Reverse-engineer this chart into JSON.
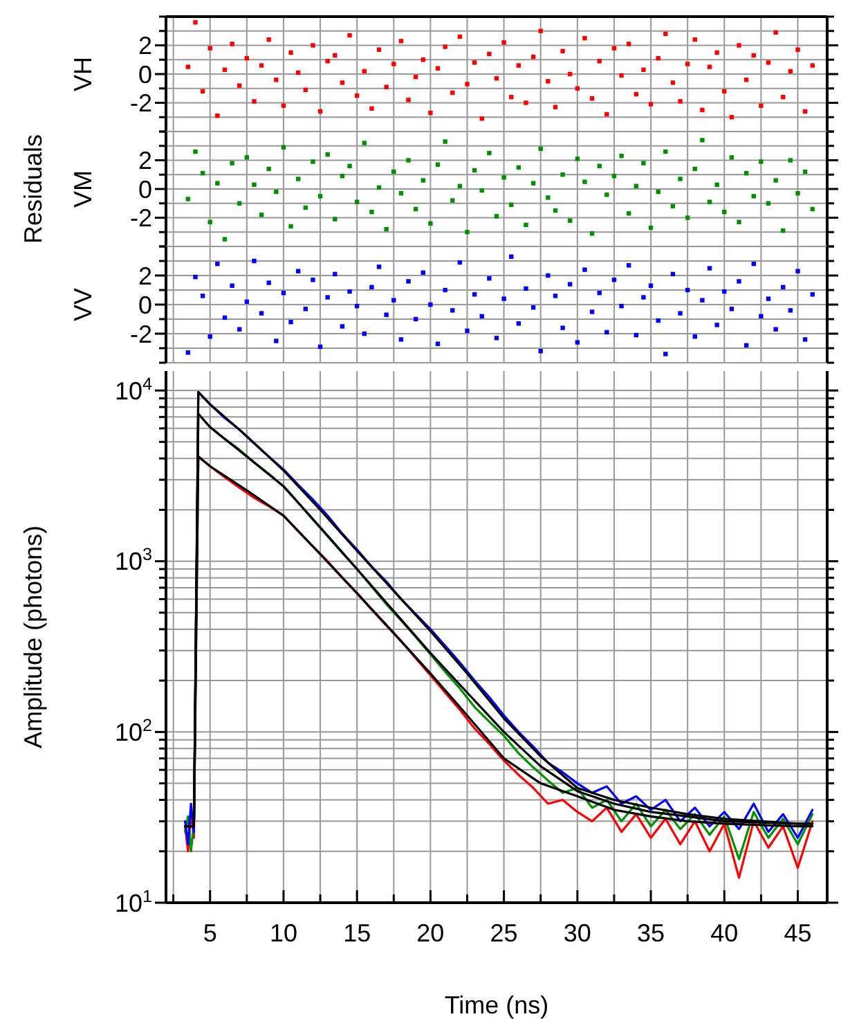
{
  "chart_data": [
    {
      "type": "scatter",
      "ylabel": "VH",
      "marker": "square",
      "grid": true,
      "tick_labels": "y",
      "color": "#ff0000",
      "xlim": [
        2,
        47
      ],
      "ylim": [
        -4,
        4
      ],
      "xticks": [
        {
          "value": 2.5,
          "label": null
        },
        5,
        {
          "value": 7.5,
          "label": null
        },
        10,
        {
          "value": 12.5,
          "label": null
        },
        15,
        {
          "value": 17.5,
          "label": null
        },
        20,
        {
          "value": 22.5,
          "label": null
        },
        25,
        {
          "value": 27.5,
          "label": null
        },
        30,
        {
          "value": 32.5,
          "label": null
        },
        35,
        {
          "value": 37.5,
          "label": null
        },
        40,
        {
          "value": 42.5,
          "label": null
        },
        45
      ],
      "yticks": [
        {
          "value": -4,
          "label": null
        },
        {
          "value": -3,
          "label": null
        },
        -2,
        {
          "value": -1,
          "label": null
        },
        0,
        {
          "value": 1,
          "label": null
        },
        2,
        {
          "value": 3,
          "label": null
        },
        {
          "value": 4,
          "label": null
        }
      ],
      "x": [
        3.5,
        4,
        4.5,
        5,
        5.5,
        6,
        6.5,
        7,
        7.5,
        8,
        8.5,
        9,
        9.5,
        10,
        10.5,
        11,
        11.5,
        12,
        12.5,
        13,
        13.5,
        14,
        14.5,
        15,
        15.5,
        16,
        16.5,
        17,
        17.5,
        18,
        18.5,
        19,
        19.5,
        20,
        20.5,
        21,
        21.5,
        22,
        22.5,
        23,
        23.5,
        24,
        24.5,
        25,
        25.5,
        26,
        26.5,
        27,
        27.5,
        28,
        28.5,
        29,
        29.5,
        30,
        30.5,
        31,
        31.5,
        32,
        32.5,
        33,
        33.5,
        34,
        34.5,
        35,
        35.5,
        36,
        36.5,
        37,
        37.5,
        38,
        38.5,
        39,
        39.5,
        40,
        40.5,
        41,
        41.5,
        42,
        42.5,
        43,
        43.5,
        44,
        44.5,
        45,
        45.5,
        46
      ],
      "values": [
        0.5,
        3.6,
        -1.2,
        1.8,
        -2.9,
        0.3,
        2.1,
        -0.8,
        1.1,
        -1.9,
        0.6,
        2.4,
        -0.4,
        -2.2,
        1.5,
        0.1,
        -1.1,
        2.0,
        -2.6,
        0.9,
        1.3,
        -0.6,
        2.7,
        -1.5,
        0.2,
        -2.4,
        1.7,
        -0.9,
        0.7,
        2.3,
        -1.8,
        -0.2,
        1.0,
        -2.7,
        0.4,
        1.9,
        -1.3,
        2.6,
        -0.7,
        0.8,
        -3.1,
        1.4,
        -0.3,
        2.2,
        -1.6,
        0.6,
        -2.0,
        1.2,
        3.0,
        -0.5,
        -2.3,
        1.6,
        0.0,
        -1.0,
        2.5,
        -1.7,
        0.9,
        -2.8,
        1.8,
        -0.1,
        2.1,
        -1.4,
        0.3,
        -2.1,
        1.1,
        2.8,
        -0.6,
        -1.9,
        0.7,
        2.4,
        -2.5,
        0.5,
        1.5,
        -1.2,
        -3.0,
        2.0,
        -0.4,
        1.3,
        -2.2,
        0.8,
        2.9,
        -1.6,
        0.2,
        1.7,
        -2.6,
        0.6
      ]
    },
    {
      "type": "scatter",
      "ylabel": "VM",
      "annotations": [
        "Residuals"
      ],
      "marker": "square",
      "grid": true,
      "tick_labels": "y",
      "color": "#009000",
      "xlim": [
        2,
        47
      ],
      "ylim": [
        -4,
        4
      ],
      "xticks": [
        {
          "value": 2.5,
          "label": null
        },
        5,
        {
          "value": 7.5,
          "label": null
        },
        10,
        {
          "value": 12.5,
          "label": null
        },
        15,
        {
          "value": 17.5,
          "label": null
        },
        20,
        {
          "value": 22.5,
          "label": null
        },
        25,
        {
          "value": 27.5,
          "label": null
        },
        30,
        {
          "value": 32.5,
          "label": null
        },
        35,
        {
          "value": 37.5,
          "label": null
        },
        40,
        {
          "value": 42.5,
          "label": null
        },
        45
      ],
      "yticks": [
        {
          "value": -4,
          "label": null
        },
        {
          "value": -3,
          "label": null
        },
        -2,
        {
          "value": -1,
          "label": null
        },
        0,
        {
          "value": 1,
          "label": null
        },
        2,
        {
          "value": 3,
          "label": null
        },
        {
          "value": 4,
          "label": null
        }
      ],
      "x": [
        3.5,
        4,
        4.5,
        5,
        5.5,
        6,
        6.5,
        7,
        7.5,
        8,
        8.5,
        9,
        9.5,
        10,
        10.5,
        11,
        11.5,
        12,
        12.5,
        13,
        13.5,
        14,
        14.5,
        15,
        15.5,
        16,
        16.5,
        17,
        17.5,
        18,
        18.5,
        19,
        19.5,
        20,
        20.5,
        21,
        21.5,
        22,
        22.5,
        23,
        23.5,
        24,
        24.5,
        25,
        25.5,
        26,
        26.5,
        27,
        27.5,
        28,
        28.5,
        29,
        29.5,
        30,
        30.5,
        31,
        31.5,
        32,
        32.5,
        33,
        33.5,
        34,
        34.5,
        35,
        35.5,
        36,
        36.5,
        37,
        37.5,
        38,
        38.5,
        39,
        39.5,
        40,
        40.5,
        41,
        41.5,
        42,
        42.5,
        43,
        43.5,
        44,
        44.5,
        45,
        45.5,
        46
      ],
      "values": [
        -0.7,
        2.6,
        1.1,
        -2.3,
        0.4,
        -3.5,
        1.8,
        -1.0,
        2.2,
        0.3,
        -1.8,
        1.4,
        -0.2,
        2.9,
        -2.6,
        0.7,
        -1.3,
        1.9,
        -0.5,
        2.4,
        -2.1,
        0.9,
        1.6,
        -0.9,
        3.2,
        -1.6,
        0.1,
        -2.8,
        1.2,
        -0.3,
        2.0,
        -1.4,
        0.6,
        -2.4,
        1.7,
        3.3,
        -0.8,
        0.2,
        -3.0,
        1.3,
        -0.1,
        2.5,
        -1.9,
        0.8,
        -1.1,
        1.5,
        -2.5,
        0.4,
        2.8,
        -0.6,
        -1.5,
        1.0,
        -2.2,
        2.1,
        0.5,
        -3.1,
        1.6,
        -0.4,
        0.9,
        2.3,
        -1.7,
        0.2,
        1.8,
        -2.7,
        -0.2,
        2.6,
        -1.2,
        0.7,
        -2.0,
        1.4,
        3.4,
        -0.9,
        0.3,
        -1.6,
        2.2,
        -2.3,
        1.1,
        -0.5,
        1.9,
        -1.0,
        0.6,
        -2.9,
        2.0,
        -0.3,
        1.2,
        -1.4
      ]
    },
    {
      "type": "scatter",
      "ylabel": "VV",
      "marker": "square",
      "grid": true,
      "tick_labels": "y",
      "color": "#0000ff",
      "xlim": [
        2,
        47
      ],
      "ylim": [
        -4,
        4
      ],
      "xticks": [
        {
          "value": 2.5,
          "label": null
        },
        5,
        {
          "value": 7.5,
          "label": null
        },
        10,
        {
          "value": 12.5,
          "label": null
        },
        15,
        {
          "value": 17.5,
          "label": null
        },
        20,
        {
          "value": 22.5,
          "label": null
        },
        25,
        {
          "value": 27.5,
          "label": null
        },
        30,
        {
          "value": 32.5,
          "label": null
        },
        35,
        {
          "value": 37.5,
          "label": null
        },
        40,
        {
          "value": 42.5,
          "label": null
        },
        45
      ],
      "yticks": [
        {
          "value": -4,
          "label": null
        },
        {
          "value": -3,
          "label": null
        },
        -2,
        {
          "value": -1,
          "label": null
        },
        0,
        {
          "value": 1,
          "label": null
        },
        2,
        {
          "value": 3,
          "label": null
        },
        {
          "value": 4,
          "label": null
        }
      ],
      "x": [
        3.5,
        4,
        4.5,
        5,
        5.5,
        6,
        6.5,
        7,
        7.5,
        8,
        8.5,
        9,
        9.5,
        10,
        10.5,
        11,
        11.5,
        12,
        12.5,
        13,
        13.5,
        14,
        14.5,
        15,
        15.5,
        16,
        16.5,
        17,
        17.5,
        18,
        18.5,
        19,
        19.5,
        20,
        20.5,
        21,
        21.5,
        22,
        22.5,
        23,
        23.5,
        24,
        24.5,
        25,
        25.5,
        26,
        26.5,
        27,
        27.5,
        28,
        28.5,
        29,
        29.5,
        30,
        30.5,
        31,
        31.5,
        32,
        32.5,
        33,
        33.5,
        34,
        34.5,
        35,
        35.5,
        36,
        36.5,
        37,
        37.5,
        38,
        38.5,
        39,
        39.5,
        40,
        40.5,
        41,
        41.5,
        42,
        42.5,
        43,
        43.5,
        44,
        44.5,
        45,
        45.5,
        46
      ],
      "values": [
        -3.3,
        1.9,
        0.6,
        -2.2,
        2.8,
        -0.9,
        1.3,
        -1.7,
        0.2,
        3.0,
        -0.6,
        1.5,
        -2.5,
        0.8,
        -1.2,
        2.3,
        -0.3,
        1.7,
        -2.9,
        0.5,
        2.1,
        -1.5,
        0.9,
        -0.1,
        -2.0,
        1.2,
        2.6,
        -0.7,
        0.3,
        -2.4,
        1.6,
        -1.0,
        2.2,
        0.0,
        -2.7,
        1.0,
        -0.4,
        2.9,
        -1.8,
        0.7,
        -0.8,
        1.8,
        -2.3,
        0.4,
        3.3,
        -1.3,
        1.1,
        -0.2,
        -3.2,
        2.0,
        0.6,
        -1.6,
        1.4,
        -2.6,
        2.4,
        -0.5,
        0.8,
        -1.9,
        1.7,
        -0.1,
        2.7,
        -2.1,
        0.5,
        1.3,
        -1.1,
        -3.4,
        2.1,
        -0.6,
        1.0,
        -2.2,
        0.3,
        2.5,
        -1.4,
        0.9,
        -0.3,
        1.6,
        -2.8,
        2.8,
        -0.8,
        0.4,
        -1.7,
        1.2,
        -0.4,
        2.3,
        -2.4,
        0.7
      ]
    },
    {
      "type": "line",
      "xlabel": "Time (ns)",
      "ylabel": "Amplitude (photons)",
      "log": true,
      "grid": true,
      "marker": "none",
      "xlim": [
        2,
        47
      ],
      "ylim": [
        10,
        13000
      ],
      "xticks": [
        {
          "value": 2.5,
          "label": null
        },
        5,
        {
          "value": 7.5,
          "label": null
        },
        10,
        {
          "value": 12.5,
          "label": null
        },
        15,
        {
          "value": 17.5,
          "label": null
        },
        20,
        {
          "value": 22.5,
          "label": null
        },
        25,
        {
          "value": 27.5,
          "label": null
        },
        30,
        {
          "value": 32.5,
          "label": null
        },
        35,
        {
          "value": 37.5,
          "label": null
        },
        40,
        {
          "value": 42.5,
          "label": null
        },
        45
      ],
      "yticks": [
        {
          "value": 10,
          "label": "10$^{1}$"
        },
        {
          "value": 20,
          "label": null
        },
        {
          "value": 30,
          "label": null
        },
        {
          "value": 40,
          "label": null
        },
        {
          "value": 50,
          "label": null
        },
        {
          "value": 60,
          "label": null
        },
        {
          "value": 70,
          "label": null
        },
        {
          "value": 80,
          "label": null
        },
        {
          "value": 90,
          "label": null
        },
        {
          "value": 100,
          "label": "10$^{2}$"
        },
        {
          "value": 200,
          "label": null
        },
        {
          "value": 300,
          "label": null
        },
        {
          "value": 400,
          "label": null
        },
        {
          "value": 500,
          "label": null
        },
        {
          "value": 600,
          "label": null
        },
        {
          "value": 700,
          "label": null
        },
        {
          "value": 800,
          "label": null
        },
        {
          "value": 900,
          "label": null
        },
        {
          "value": 1000,
          "label": "10$^{3}$"
        },
        {
          "value": 2000,
          "label": null
        },
        {
          "value": 3000,
          "label": null
        },
        {
          "value": 4000,
          "label": null
        },
        {
          "value": 5000,
          "label": null
        },
        {
          "value": 6000,
          "label": null
        },
        {
          "value": 7000,
          "label": null
        },
        {
          "value": 8000,
          "label": null
        },
        {
          "value": 9000,
          "label": null
        },
        {
          "value": 10000,
          "label": "10$^{4}$"
        }
      ],
      "series": [
        {
          "color": "#ff0000",
          "x": [
            3.3,
            3.5,
            3.7,
            3.9,
            4.2,
            5,
            6,
            7,
            8,
            9,
            10,
            11,
            12,
            13,
            14,
            15,
            16,
            17,
            18,
            19,
            20,
            21,
            22,
            23,
            24,
            25,
            26,
            27,
            28,
            29,
            30,
            31,
            32,
            33,
            34,
            35,
            36,
            37,
            38,
            39,
            40,
            41,
            42,
            43,
            44,
            45,
            46
          ],
          "values": [
            28,
            20,
            34,
            24,
            4100,
            3600,
            3100,
            2700,
            2350,
            2100,
            1850,
            1500,
            1220,
            1000,
            800,
            650,
            520,
            420,
            340,
            270,
            215,
            170,
            135,
            105,
            85,
            68,
            56,
            47,
            38,
            40,
            34,
            30,
            36,
            26,
            33,
            24,
            31,
            22,
            30,
            20,
            29,
            14,
            30,
            21,
            28,
            16,
            30
          ]
        },
        {
          "color": "#009000",
          "x": [
            3.3,
            3.5,
            3.7,
            3.9,
            4.2,
            5,
            6,
            7,
            8,
            9,
            10,
            11,
            12,
            13,
            14,
            15,
            16,
            17,
            18,
            19,
            20,
            21,
            22,
            23,
            24,
            25,
            26,
            27,
            28,
            29,
            30,
            31,
            32,
            33,
            34,
            35,
            36,
            37,
            38,
            39,
            40,
            41,
            42,
            43,
            44,
            45,
            46
          ],
          "values": [
            26,
            32,
            20,
            29,
            7300,
            6100,
            5200,
            4500,
            3800,
            3250,
            2750,
            2200,
            1750,
            1400,
            1120,
            900,
            710,
            560,
            450,
            360,
            285,
            225,
            180,
            140,
            115,
            95,
            75,
            62,
            52,
            44,
            47,
            36,
            40,
            30,
            38,
            28,
            35,
            27,
            33,
            25,
            32,
            18,
            34,
            24,
            31,
            22,
            33
          ]
        },
        {
          "color": "#0000ff",
          "x": [
            3.3,
            3.5,
            3.7,
            3.9,
            4.2,
            5,
            6,
            7,
            8,
            9,
            10,
            11,
            12,
            13,
            14,
            15,
            16,
            17,
            18,
            19,
            20,
            21,
            22,
            23,
            24,
            25,
            26,
            27,
            28,
            29,
            30,
            31,
            32,
            33,
            34,
            35,
            36,
            37,
            38,
            39,
            40,
            41,
            42,
            43,
            44,
            45,
            46
          ],
          "values": [
            30,
            22,
            38,
            26,
            9800,
            8300,
            6900,
            5900,
            4900,
            4100,
            3450,
            2800,
            2300,
            1850,
            1450,
            1170,
            930,
            760,
            600,
            490,
            400,
            320,
            255,
            200,
            160,
            125,
            100,
            82,
            66,
            58,
            50,
            44,
            48,
            38,
            42,
            35,
            40,
            30,
            36,
            28,
            34,
            27,
            38,
            26,
            33,
            24,
            35
          ]
        },
        {
          "color": "#000000",
          "x": [
            3.3,
            3.9,
            4.2,
            5,
            7.5,
            10,
            12.5,
            15,
            17.5,
            20,
            22.5,
            25,
            27.5,
            30,
            32.5,
            35,
            37.5,
            40,
            42.5,
            45,
            46
          ],
          "values": [
            28,
            28,
            4100,
            3600,
            2600,
            1850,
            1100,
            650,
            380,
            220,
            125,
            70,
            50,
            42,
            35,
            32,
            30,
            29,
            28.5,
            28,
            28
          ]
        },
        {
          "color": "#000000",
          "x": [
            3.3,
            3.9,
            4.2,
            5,
            7.5,
            10,
            12.5,
            15,
            17.5,
            20,
            22.5,
            25,
            27.5,
            30,
            32.5,
            35,
            37.5,
            40,
            42.5,
            45,
            46
          ],
          "values": [
            28,
            28,
            7300,
            6100,
            4100,
            2750,
            1580,
            900,
            510,
            290,
            170,
            100,
            63,
            45,
            38,
            34,
            32,
            30,
            29.5,
            29,
            29
          ]
        },
        {
          "color": "#000000",
          "x": [
            3.3,
            3.9,
            4.2,
            5,
            7.5,
            10,
            12.5,
            15,
            17.5,
            20,
            22.5,
            25,
            27.5,
            30,
            32.5,
            35,
            37.5,
            40,
            42.5,
            45,
            46
          ],
          "values": [
            28,
            28,
            9800,
            8300,
            5400,
            3400,
            2000,
            1150,
            670,
            390,
            220,
            120,
            72,
            47,
            40,
            36,
            33,
            31,
            30,
            29,
            29
          ]
        }
      ]
    }
  ]
}
